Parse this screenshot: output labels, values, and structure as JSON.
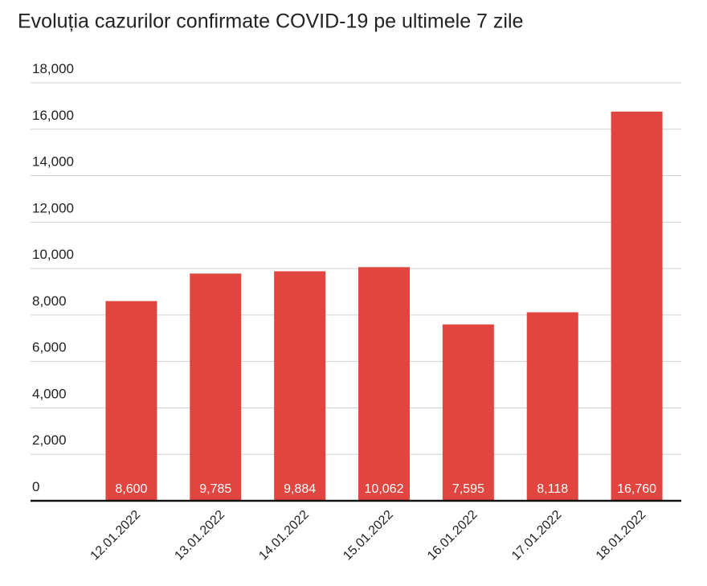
{
  "chart_data": {
    "type": "bar",
    "title": "Evoluția cazurilor confirmate COVID-19 pe ultimele 7 zile",
    "categories": [
      "12.01.2022",
      "13.01.2022",
      "14.01.2022",
      "15.01.2022",
      "16.01.2022",
      "17.01.2022",
      "18.01.2022"
    ],
    "values": [
      8600,
      9785,
      9884,
      10062,
      7595,
      8118,
      16760
    ],
    "value_labels": [
      "8,600",
      "9,785",
      "9,884",
      "10,062",
      "7,595",
      "8,118",
      "16,760"
    ],
    "color": "#e0463f",
    "ylim": [
      0,
      18000
    ],
    "yticks": [
      0,
      {
        "value": 2000,
        "label": "2,000"
      },
      {
        "value": 4000,
        "label": "4,000"
      },
      {
        "value": 6000,
        "label": "6,000"
      },
      {
        "value": 8000,
        "label": "8,000"
      },
      {
        "value": 10000,
        "label": "10,000"
      },
      {
        "value": 12000,
        "label": "12,000"
      },
      {
        "value": 14000,
        "label": "14,000"
      },
      {
        "value": 16000,
        "label": "16,000"
      },
      {
        "value": 18000,
        "label": "18,000"
      }
    ],
    "grid": true
  }
}
